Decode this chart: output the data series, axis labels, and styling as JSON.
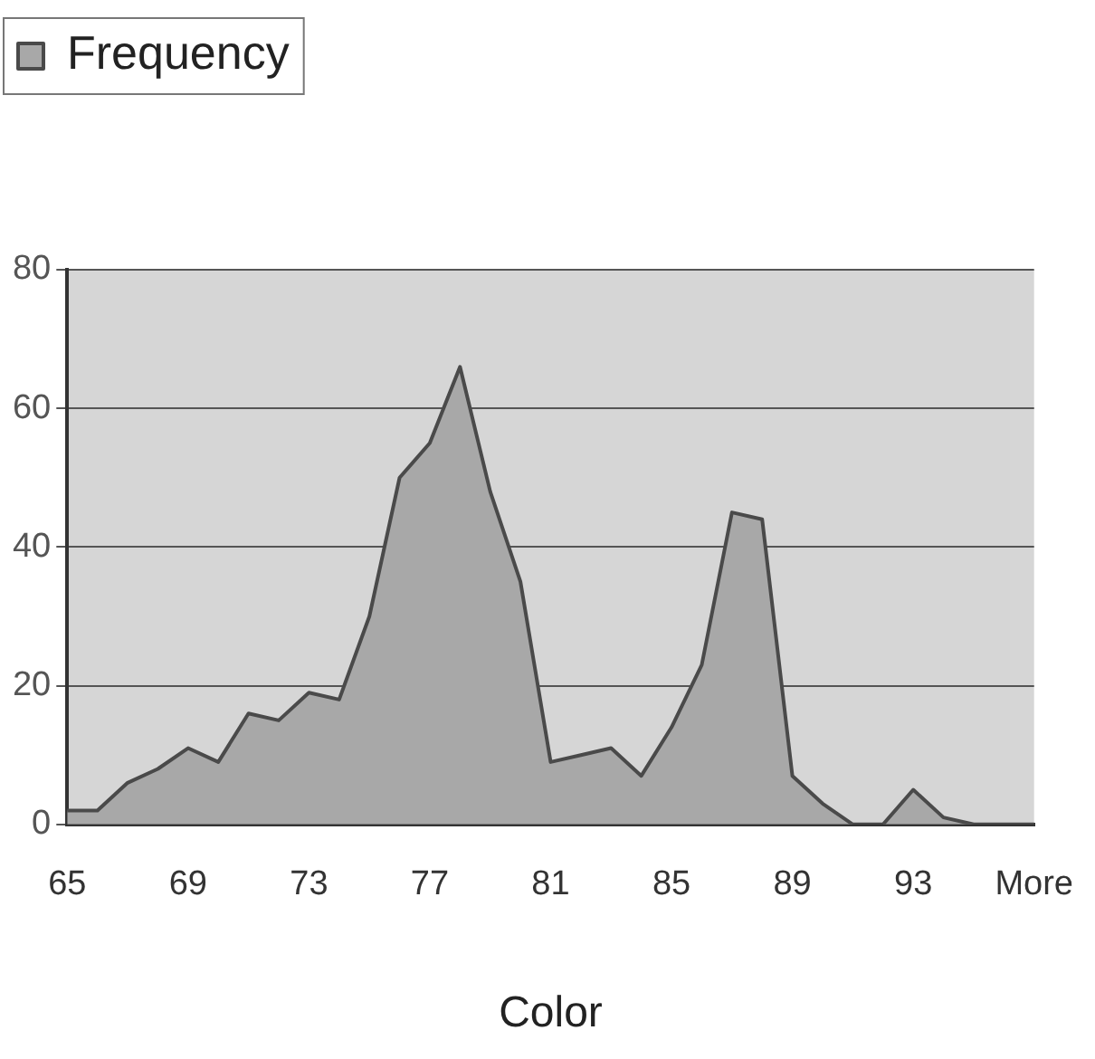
{
  "chart_data": {
    "type": "area",
    "xlabel": "Color",
    "categories": [
      "65",
      null,
      null,
      null,
      "69",
      null,
      null,
      null,
      "73",
      null,
      null,
      null,
      "77",
      null,
      null,
      null,
      "81",
      null,
      null,
      null,
      "85",
      null,
      null,
      null,
      "89",
      null,
      null,
      null,
      "93",
      null,
      null,
      null,
      "More"
    ],
    "series": [
      {
        "name": "Frequency",
        "color": "#a8a8a8",
        "values": [
          2,
          2,
          6,
          8,
          11,
          9,
          16,
          15,
          19,
          18,
          30,
          50,
          55,
          66,
          48,
          35,
          9,
          10,
          11,
          7,
          14,
          23,
          45,
          44,
          7,
          3,
          0,
          0,
          5,
          1,
          0,
          0,
          0
        ]
      }
    ],
    "ylim": [
      0,
      80
    ],
    "yticks": [
      0,
      20,
      40,
      60,
      80
    ],
    "grid": "y",
    "legend": "top left"
  }
}
